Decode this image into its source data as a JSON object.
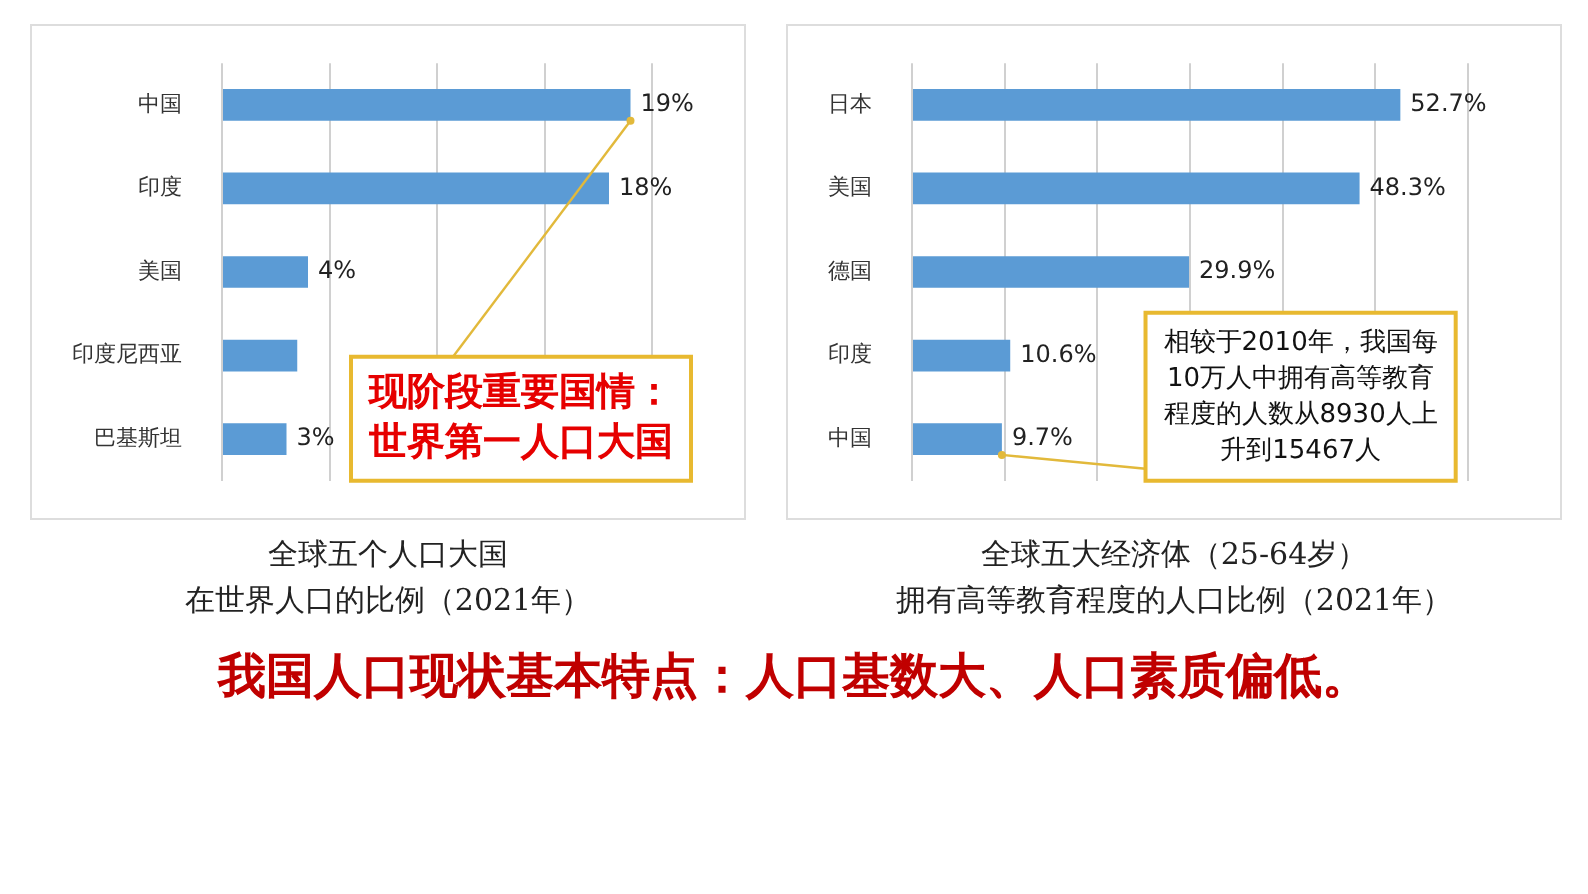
{
  "chart_data": [
    {
      "type": "bar",
      "orientation": "horizontal",
      "title": "全球五个人口大国",
      "subtitle": "在世界人口的比例（2021年）",
      "categories": [
        "中国",
        "印度",
        "美国",
        "印度尼西亚",
        "巴基斯坦"
      ],
      "values": [
        19,
        18,
        4,
        3.5,
        3
      ],
      "value_labels": [
        "19%",
        "18%",
        "4%",
        null,
        "3%"
      ],
      "color": "#5b9bd5",
      "xlim": [
        0,
        20
      ],
      "xticks": [
        {
          "value": 0,
          "label": null
        },
        {
          "value": 5,
          "label": null
        },
        {
          "value": 10,
          "label": null
        },
        {
          "value": 15,
          "label": null
        },
        {
          "value": 20,
          "label": null
        }
      ],
      "grid": "x",
      "tick_labels": "y",
      "annotations": [
        {
          "text": "现阶段重要国情：世界第一人口大国",
          "x": 19,
          "y": "中国"
        }
      ]
    },
    {
      "type": "bar",
      "orientation": "horizontal",
      "title": "全球五大经济体（25-64岁）",
      "subtitle": "拥有高等教育程度的人口比例（2021年）",
      "categories": [
        "日本",
        "美国",
        "德国",
        "印度",
        "中国"
      ],
      "values": [
        52.7,
        48.3,
        29.9,
        10.6,
        9.7
      ],
      "value_labels": [
        "52.7%",
        "48.3%",
        "29.9%",
        "10.6%",
        "9.7%"
      ],
      "color": "#5b9bd5",
      "xlim": [
        0,
        60
      ],
      "xticks": [
        {
          "value": 0,
          "label": null
        },
        {
          "value": 10,
          "label": null
        },
        {
          "value": 20,
          "label": null
        },
        {
          "value": 30,
          "label": null
        },
        {
          "value": 40,
          "label": null
        },
        {
          "value": 50,
          "label": null
        },
        {
          "value": 60,
          "label": null
        }
      ],
      "grid": "x",
      "tick_labels": "y",
      "annotations": [
        {
          "text": "相较于2010年，我国每10万人中拥有高等教育程度的人数从8930人上升到15467人",
          "x": 9.7,
          "y": "中国"
        }
      ]
    },
    {
      "type": "other",
      "title": "我国人口现状基本特点：人口基数大、人口素质偏低。"
    }
  ]
}
